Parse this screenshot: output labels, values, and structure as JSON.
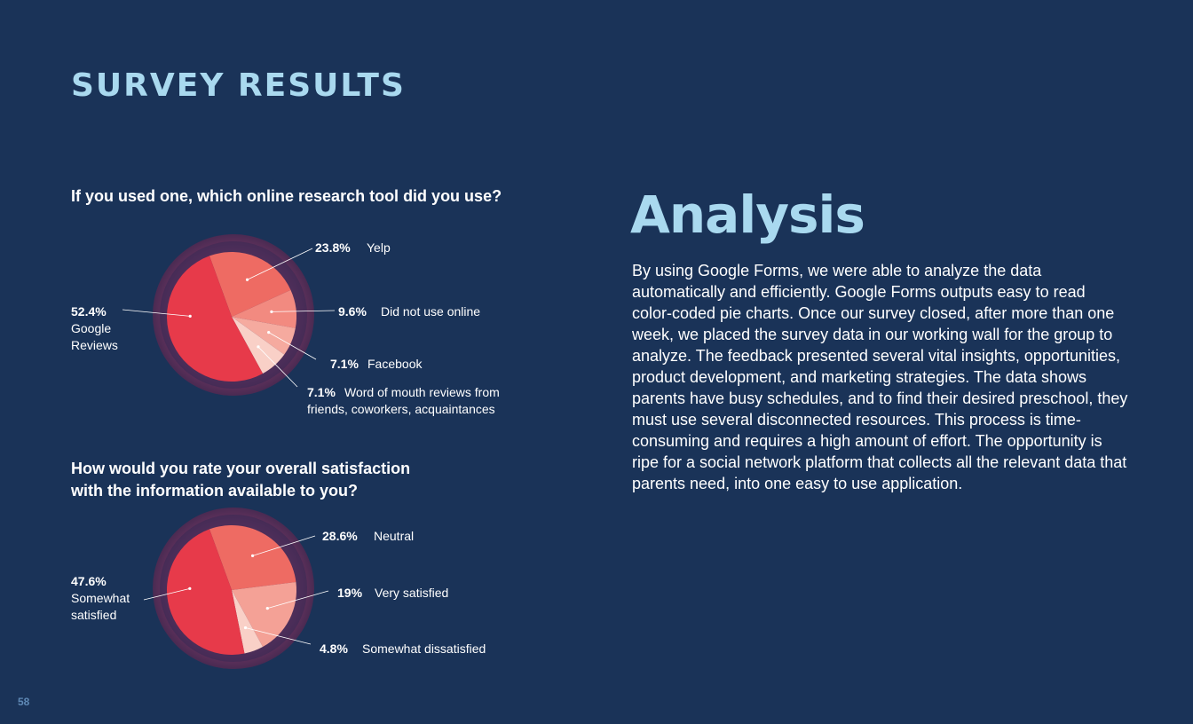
{
  "page": {
    "section_title": "SURVEY RESULTS",
    "page_number": "58"
  },
  "analysis": {
    "title": "Analysis",
    "body": "By using Google Forms, we were able to analyze the data automatically and efficiently. Google Forms outputs easy to read color-coded pie charts. Once our survey closed, after more than one week, we placed the survey data in our working wall for the group to analyze. The feedback presented several vital insights, opportunities, product development, and marketing strategies. The data shows parents have busy schedules, and to find their desired preschool, they must use several disconnected resources. This process is time-consuming and requires a high amount of effort. The opportunity is ripe for a social network platform that collects all the relevant data that parents need, into one easy to use application."
  },
  "chart_data": [
    {
      "type": "pie",
      "title": "If you used one, which online research tool did you use?",
      "slices": [
        {
          "label": "Yelp",
          "pct_label": "23.8%",
          "value": 23.8,
          "color": "#ee6b63"
        },
        {
          "label": "Did not use online",
          "pct_label": "9.6%",
          "value": 9.6,
          "color": "#f28a80"
        },
        {
          "label": "Facebook",
          "pct_label": "7.1%",
          "value": 7.1,
          "color": "#f5aa9f"
        },
        {
          "label": "Word of mouth reviews from\nfriends, coworkers, acquaintances",
          "pct_label": "7.1%",
          "value": 7.1,
          "color": "#f9d0c7"
        },
        {
          "label": "Google\nReviews",
          "pct_label": "52.4%",
          "value": 52.4,
          "color": "#e73a4a"
        }
      ]
    },
    {
      "type": "pie",
      "title": "How would you rate your overall satisfaction\nwith the information available to you?",
      "slices": [
        {
          "label": "Neutral",
          "pct_label": "28.6%",
          "value": 28.6,
          "color": "#ee6b63"
        },
        {
          "label": "Very satisfied",
          "pct_label": "19%",
          "value": 19,
          "color": "#f4a196"
        },
        {
          "label": "Somewhat dissatisfied",
          "pct_label": "4.8%",
          "value": 4.8,
          "color": "#f9d0c7"
        },
        {
          "label": "Somewhat\nsatisfied",
          "pct_label": "47.6%",
          "value": 47.6,
          "color": "#e73a4a"
        }
      ]
    }
  ]
}
